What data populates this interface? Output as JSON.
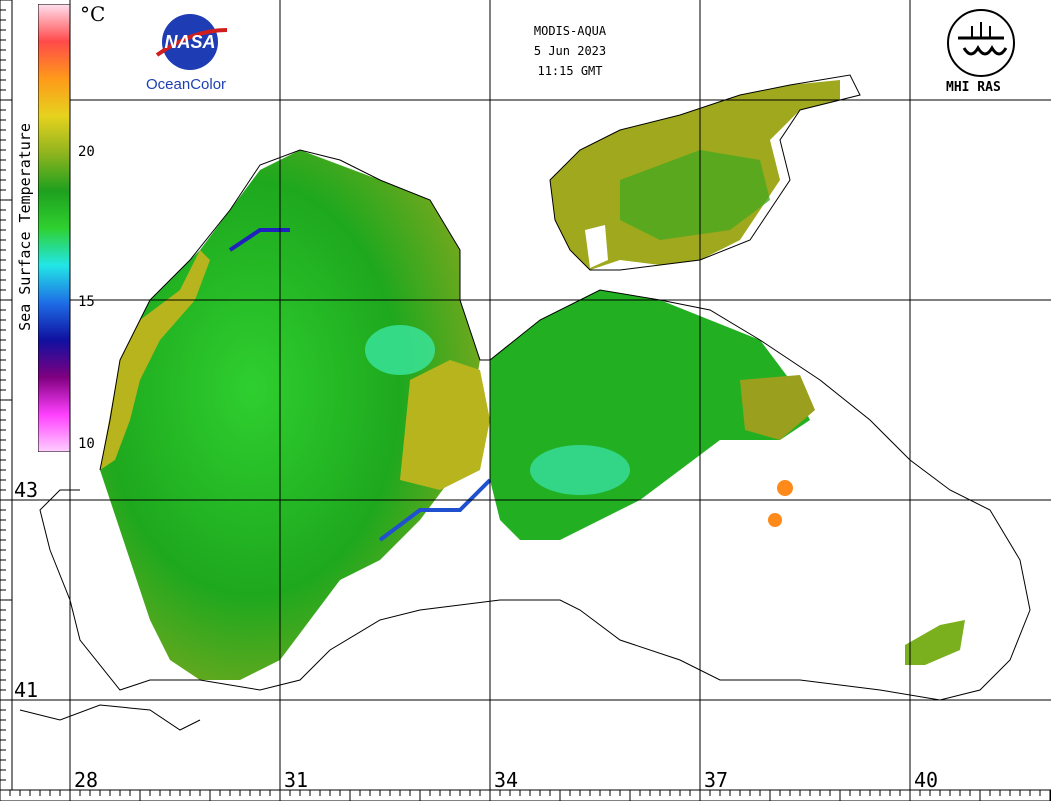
{
  "header": {
    "sensor": "MODIS-AQUA",
    "date": "5 Jun 2023",
    "time": "11:15 GMT"
  },
  "logos": {
    "nasa": "NASA",
    "oceancolor": "OceanColor",
    "mhi": "MHI RAS"
  },
  "colorbar": {
    "title": "Sea Surface Temperature",
    "unit": "°C",
    "ticks": [
      "20",
      "15",
      "10"
    ],
    "colors": [
      "#ffe0f0",
      "#ff4a4a",
      "#ff9a1a",
      "#e6d21e",
      "#8fb41e",
      "#1ea01e",
      "#2fd02f",
      "#22e6e6",
      "#1e6ee6",
      "#1010a0",
      "#800080",
      "#ff40ff",
      "#ffd0ff"
    ]
  },
  "grid": {
    "lon_labels": [
      "28",
      "31",
      "34",
      "37",
      "40"
    ],
    "lat_labels": [
      "43",
      "41"
    ]
  }
}
